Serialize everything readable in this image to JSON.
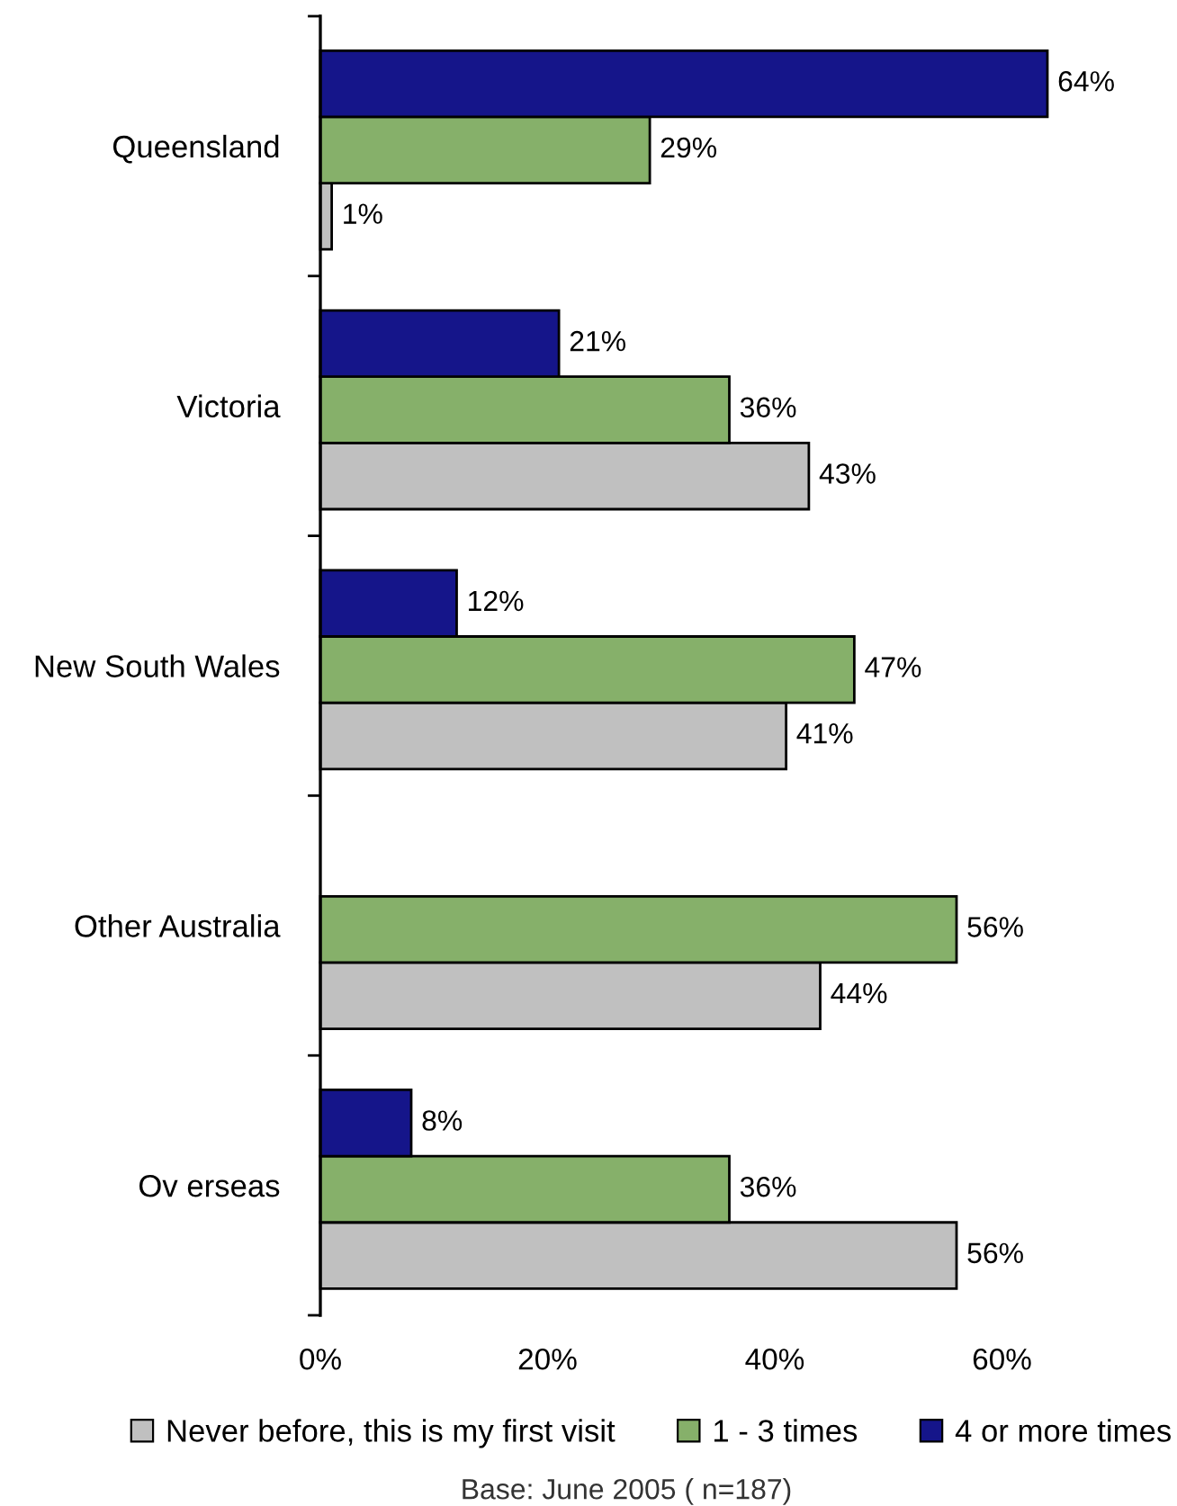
{
  "chart_data": {
    "type": "bar",
    "orientation": "horizontal",
    "categories": [
      "Queensland",
      "Victoria",
      "New South Wales",
      "Other Australia",
      "Ov erseas"
    ],
    "series": [
      {
        "name": "Never before, this is my first visit",
        "color": "#c0c0c0",
        "values": [
          1,
          43,
          41,
          44,
          56
        ],
        "value_labels": [
          "1%",
          "43%",
          "41%",
          "44%",
          "56%"
        ]
      },
      {
        "name": "1 - 3 times",
        "color": "#86b06a",
        "values": [
          29,
          36,
          47,
          56,
          36
        ],
        "value_labels": [
          "29%",
          "36%",
          "47%",
          "56%",
          "36%"
        ]
      },
      {
        "name": "4 or more times",
        "color": "#15158a",
        "values": [
          64,
          21,
          12,
          null,
          8
        ],
        "value_labels": [
          "64%",
          "21%",
          "12%",
          null,
          "8%"
        ]
      }
    ],
    "xlim": [
      0,
      64
    ],
    "xticks": [
      {
        "value": 0,
        "label": "0%"
      },
      {
        "value": 20,
        "label": "20%"
      },
      {
        "value": 40,
        "label": "40%"
      },
      {
        "value": 60,
        "label": "60%"
      }
    ],
    "legend": "bottom",
    "annotations": [
      "Base: June 2005 ( n=187)"
    ]
  }
}
